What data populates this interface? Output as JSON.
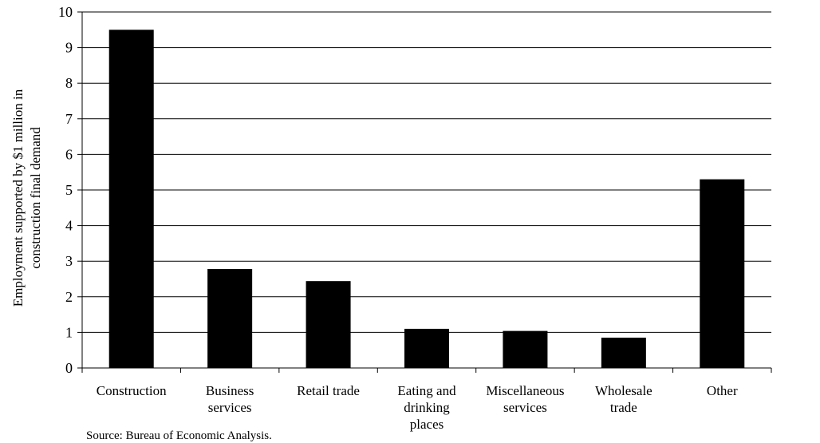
{
  "chart_data": {
    "type": "bar",
    "title": "",
    "xlabel": "",
    "ylabel_lines": [
      "Employment supported by $1 million in",
      "construction final demand"
    ],
    "categories": [
      [
        "Construction"
      ],
      [
        "Business",
        "services"
      ],
      [
        "Retail trade"
      ],
      [
        "Eating and",
        "drinking",
        "places"
      ],
      [
        "Miscellaneous",
        "services"
      ],
      [
        "Wholesale",
        "trade"
      ],
      [
        "Other"
      ]
    ],
    "values": [
      9.5,
      2.78,
      2.44,
      1.1,
      1.04,
      0.85,
      5.3
    ],
    "ylim": [
      0,
      10
    ],
    "yticks": [
      0,
      1,
      2,
      3,
      4,
      5,
      6,
      7,
      8,
      9,
      10
    ],
    "grid": true,
    "legend": "none",
    "bar_color": "#000000"
  },
  "source_note": "Source: Bureau of Economic Analysis."
}
